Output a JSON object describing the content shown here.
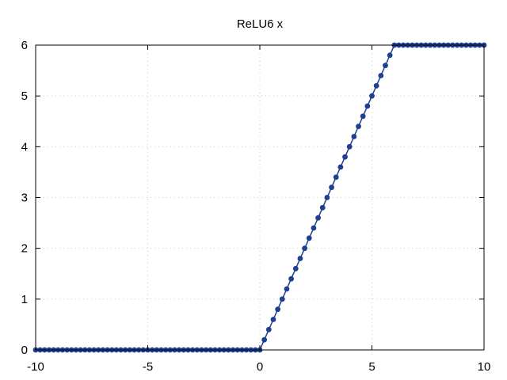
{
  "chart_data": {
    "type": "line",
    "title": "ReLU6 x",
    "xlabel": "",
    "ylabel": "",
    "xlim": [
      -10,
      10
    ],
    "ylim": [
      0,
      6
    ],
    "x_ticks": [
      -10,
      -5,
      0,
      5,
      10
    ],
    "x_tick_labels": [
      "-10",
      "-5",
      "0",
      "5",
      "10"
    ],
    "y_ticks": [
      0,
      1,
      2,
      3,
      4,
      5,
      6
    ],
    "y_tick_labels": [
      "0",
      "1",
      "2",
      "3",
      "4",
      "5",
      "6"
    ],
    "grid": true,
    "series": [
      {
        "color": "#1f3f8f",
        "marker": "circle",
        "x": [
          -10.0,
          -9.8,
          -9.6,
          -9.4,
          -9.2,
          -9.0,
          -8.8,
          -8.6,
          -8.4,
          -8.2,
          -8.0,
          -7.8,
          -7.6,
          -7.4,
          -7.2,
          -7.0,
          -6.8,
          -6.6,
          -6.4,
          -6.2,
          -6.0,
          -5.8,
          -5.6,
          -5.4,
          -5.2,
          -5.0,
          -4.8,
          -4.6,
          -4.4,
          -4.2,
          -4.0,
          -3.8,
          -3.6,
          -3.4,
          -3.2,
          -3.0,
          -2.8,
          -2.6,
          -2.4,
          -2.2,
          -2.0,
          -1.8,
          -1.6,
          -1.4,
          -1.2,
          -1.0,
          -0.8,
          -0.6,
          -0.4,
          -0.2,
          0.0,
          0.2,
          0.4,
          0.6,
          0.8,
          1.0,
          1.2,
          1.4,
          1.6,
          1.8,
          2.0,
          2.2,
          2.4,
          2.6,
          2.8,
          3.0,
          3.2,
          3.4,
          3.6,
          3.8,
          4.0,
          4.2,
          4.4,
          4.6,
          4.8,
          5.0,
          5.2,
          5.4,
          5.6,
          5.8,
          6.0,
          6.2,
          6.4,
          6.6,
          6.8,
          7.0,
          7.2,
          7.4,
          7.6,
          7.8,
          8.0,
          8.2,
          8.4,
          8.6,
          8.8,
          9.0,
          9.2,
          9.4,
          9.6,
          9.8,
          10.0
        ],
        "y": [
          0,
          0,
          0,
          0,
          0,
          0,
          0,
          0,
          0,
          0,
          0,
          0,
          0,
          0,
          0,
          0,
          0,
          0,
          0,
          0,
          0,
          0,
          0,
          0,
          0,
          0,
          0,
          0,
          0,
          0,
          0,
          0,
          0,
          0,
          0,
          0,
          0,
          0,
          0,
          0,
          0,
          0,
          0,
          0,
          0,
          0,
          0,
          0,
          0,
          0,
          0.0,
          0.2,
          0.4,
          0.6,
          0.8,
          1.0,
          1.2,
          1.4,
          1.6,
          1.8,
          2.0,
          2.2,
          2.4,
          2.6,
          2.8,
          3.0,
          3.2,
          3.4,
          3.6,
          3.8,
          4.0,
          4.2,
          4.4,
          4.6,
          4.8,
          5.0,
          5.2,
          5.4,
          5.6,
          5.8,
          6,
          6,
          6,
          6,
          6,
          6,
          6,
          6,
          6,
          6,
          6,
          6,
          6,
          6,
          6,
          6,
          6,
          6,
          6,
          6,
          6
        ]
      }
    ]
  }
}
